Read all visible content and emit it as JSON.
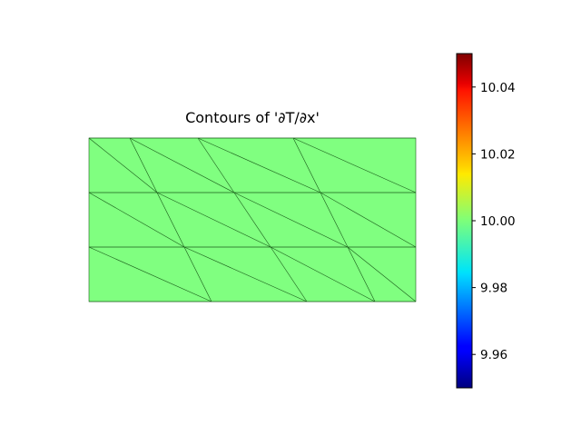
{
  "chart_data": {
    "type": "heatmap",
    "title": "Contours of '∂T/∂x'",
    "field_value": 10.0,
    "field_color": "#80ff80",
    "mesh_line_color": "#1a5c1a",
    "mesh": {
      "x_range": [
        0,
        12
      ],
      "y_range": [
        0,
        6
      ],
      "rows": [
        {
          "y": [
            4,
            6
          ],
          "top_x": [
            0,
            1.5,
            4.0,
            7.5,
            12
          ],
          "bottom_x": [
            0,
            2.5,
            5.33,
            8.5,
            12
          ]
        },
        {
          "y": [
            2,
            4
          ],
          "top_x": [
            0,
            2.5,
            5.33,
            8.5,
            12
          ],
          "bottom_x": [
            0,
            3.5,
            6.67,
            9.5,
            12
          ]
        },
        {
          "y": [
            0,
            2
          ],
          "top_x": [
            0,
            3.5,
            6.67,
            9.5,
            12
          ],
          "bottom_x": [
            0,
            4.5,
            8.0,
            10.5,
            12
          ]
        }
      ]
    },
    "colorbar": {
      "colormap": "jet",
      "range": [
        9.95,
        10.05
      ],
      "ticks": [
        9.96,
        9.98,
        10.0,
        10.02,
        10.04
      ],
      "tick_labels": [
        "9.96",
        "9.98",
        "10.00",
        "10.02",
        "10.04"
      ]
    }
  }
}
